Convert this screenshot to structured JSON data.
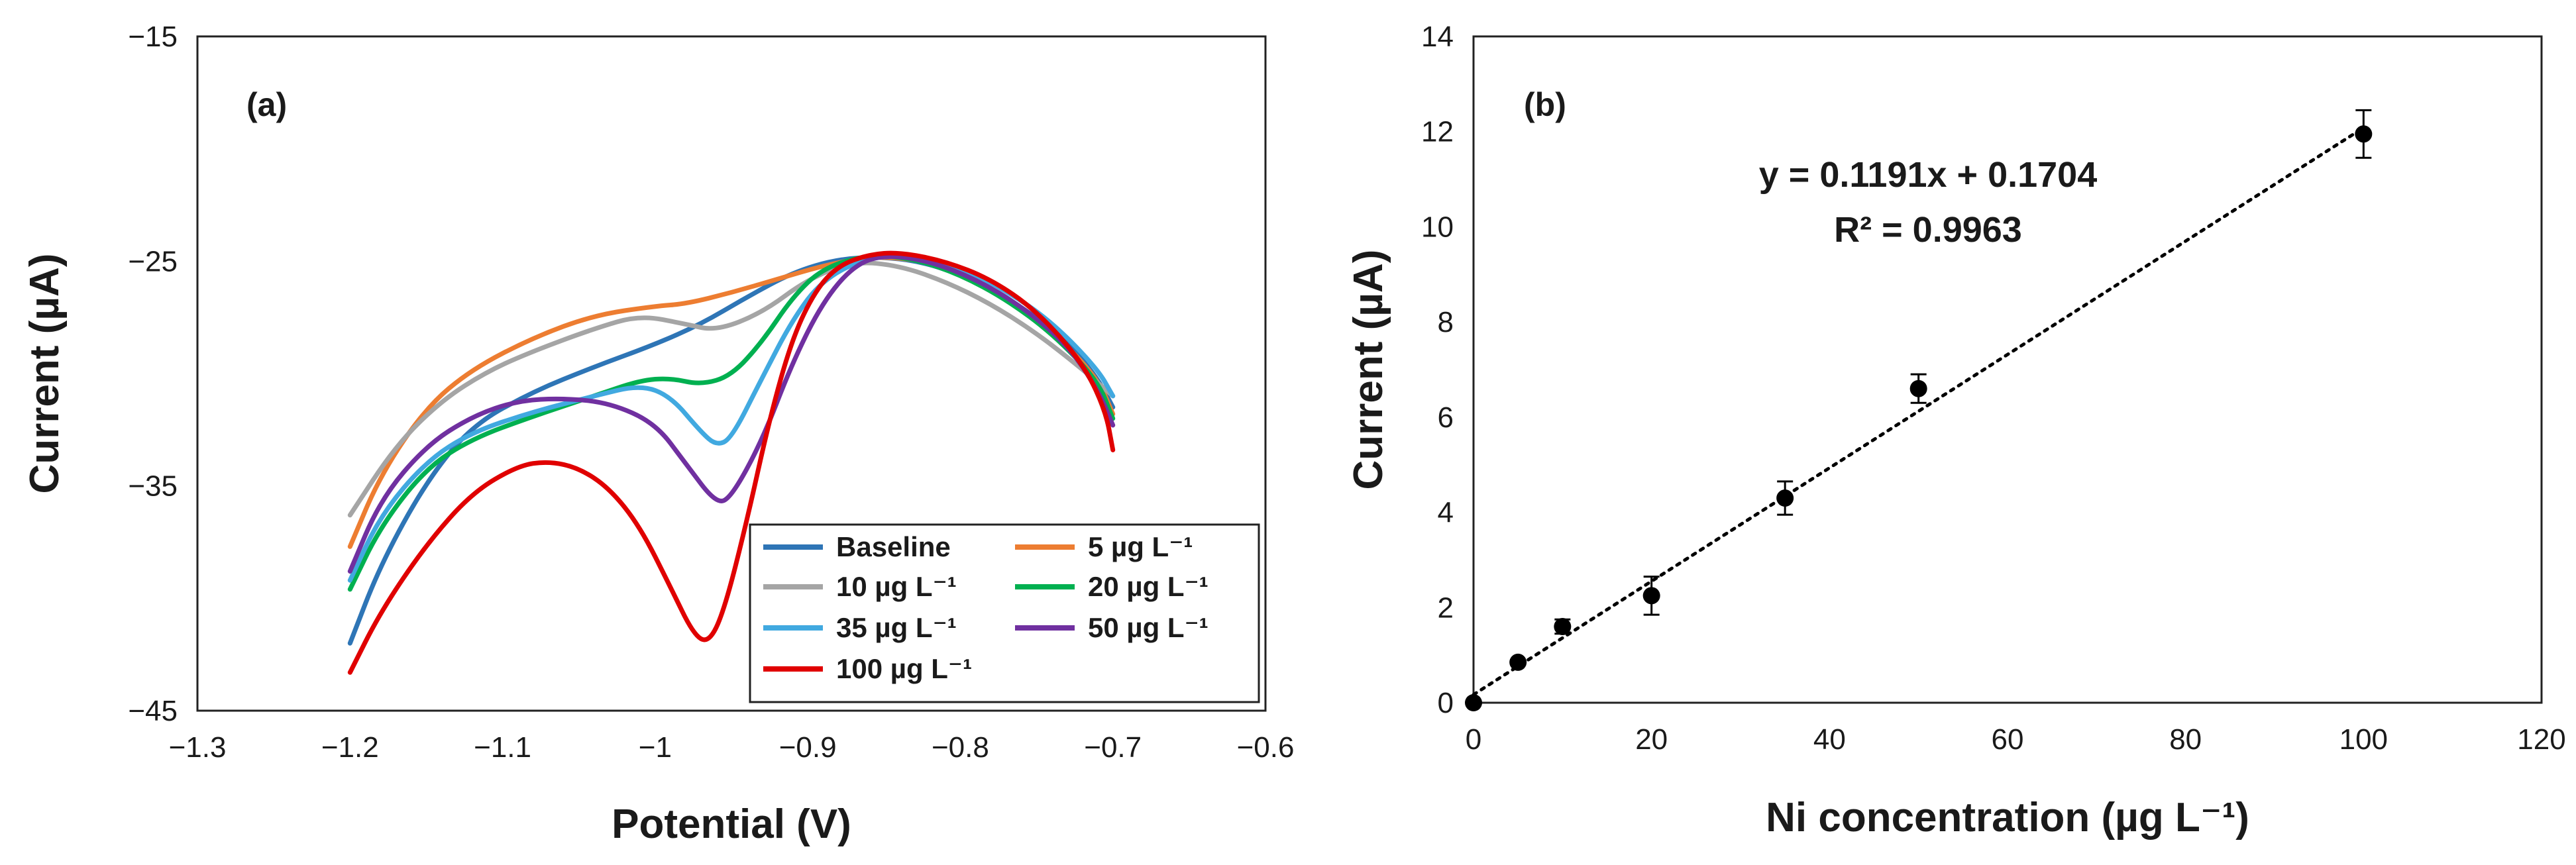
{
  "chart_data": [
    {
      "type": "line",
      "panel_label": "(a)",
      "title": "",
      "xlabel": "Potential (V)",
      "ylabel": "Current (µA)",
      "xlim": [
        -1.3,
        -0.6
      ],
      "ylim": [
        -45,
        -15
      ],
      "xticks": [
        -1.3,
        -1.2,
        -1.1,
        -1.0,
        -0.9,
        -0.8,
        -0.7,
        -0.6
      ],
      "xtick_labels": [
        "−1.3",
        "−1.2",
        "−1.1",
        "−1",
        "−0.9",
        "−0.8",
        "−0.7",
        "−0.6"
      ],
      "yticks": [
        -15,
        -25,
        -35,
        -45
      ],
      "ytick_labels": [
        "−15",
        "−25",
        "−35",
        "−45"
      ],
      "grid": false,
      "legend_position": "bottom-right",
      "series": [
        {
          "name": "Baseline",
          "color": "#2e75b6",
          "points": [
            [
              -1.2,
              -42.0
            ],
            [
              -1.18,
              -38.5
            ],
            [
              -1.15,
              -34.8
            ],
            [
              -1.12,
              -32.3
            ],
            [
              -1.08,
              -30.8
            ],
            [
              -1.04,
              -29.7
            ],
            [
              -1.0,
              -28.7
            ],
            [
              -0.97,
              -27.8
            ],
            [
              -0.94,
              -26.6
            ],
            [
              -0.91,
              -25.5
            ],
            [
              -0.88,
              -24.9
            ],
            [
              -0.85,
              -24.8
            ],
            [
              -0.82,
              -25.1
            ],
            [
              -0.79,
              -25.9
            ],
            [
              -0.76,
              -27.0
            ],
            [
              -0.73,
              -28.6
            ],
            [
              -0.71,
              -30.2
            ],
            [
              -0.7,
              -31.5
            ]
          ]
        },
        {
          "name": "5 µg L⁻¹",
          "color": "#ed7d31",
          "points": [
            [
              -1.2,
              -37.7
            ],
            [
              -1.18,
              -34.5
            ],
            [
              -1.15,
              -31.5
            ],
            [
              -1.12,
              -29.8
            ],
            [
              -1.08,
              -28.4
            ],
            [
              -1.04,
              -27.4
            ],
            [
              -1.0,
              -27.0
            ],
            [
              -0.98,
              -26.9
            ],
            [
              -0.95,
              -26.4
            ],
            [
              -0.92,
              -25.8
            ],
            [
              -0.89,
              -25.2
            ],
            [
              -0.86,
              -24.8
            ],
            [
              -0.83,
              -24.9
            ],
            [
              -0.8,
              -25.5
            ],
            [
              -0.77,
              -26.6
            ],
            [
              -0.74,
              -28.1
            ],
            [
              -0.71,
              -30.2
            ],
            [
              -0.7,
              -31.8
            ]
          ]
        },
        {
          "name": "10 µg L⁻¹",
          "color": "#a5a5a5",
          "points": [
            [
              -1.2,
              -36.3
            ],
            [
              -1.17,
              -33.2
            ],
            [
              -1.14,
              -31.2
            ],
            [
              -1.11,
              -29.9
            ],
            [
              -1.08,
              -29.0
            ],
            [
              -1.04,
              -28.0
            ],
            [
              -1.01,
              -27.4
            ],
            [
              -0.98,
              -27.8
            ],
            [
              -0.96,
              -28.1
            ],
            [
              -0.93,
              -27.3
            ],
            [
              -0.9,
              -25.8
            ],
            [
              -0.87,
              -25.0
            ],
            [
              -0.84,
              -25.2
            ],
            [
              -0.81,
              -25.9
            ],
            [
              -0.78,
              -26.9
            ],
            [
              -0.75,
              -28.2
            ],
            [
              -0.72,
              -29.8
            ],
            [
              -0.7,
              -31.0
            ]
          ]
        },
        {
          "name": "20 µg L⁻¹",
          "color": "#00b050",
          "points": [
            [
              -1.2,
              -39.6
            ],
            [
              -1.18,
              -36.8
            ],
            [
              -1.15,
              -34.2
            ],
            [
              -1.12,
              -32.9
            ],
            [
              -1.08,
              -31.9
            ],
            [
              -1.04,
              -31.0
            ],
            [
              -1.01,
              -30.3
            ],
            [
              -0.99,
              -30.2
            ],
            [
              -0.97,
              -30.5
            ],
            [
              -0.95,
              -30.1
            ],
            [
              -0.93,
              -28.6
            ],
            [
              -0.91,
              -26.6
            ],
            [
              -0.89,
              -25.3
            ],
            [
              -0.86,
              -24.7
            ],
            [
              -0.83,
              -24.9
            ],
            [
              -0.8,
              -25.6
            ],
            [
              -0.77,
              -26.7
            ],
            [
              -0.74,
              -28.2
            ],
            [
              -0.71,
              -30.3
            ],
            [
              -0.7,
              -32.0
            ]
          ]
        },
        {
          "name": "35 µg L⁻¹",
          "color": "#41a9e0",
          "points": [
            [
              -1.2,
              -39.2
            ],
            [
              -1.18,
              -36.3
            ],
            [
              -1.15,
              -33.9
            ],
            [
              -1.12,
              -32.6
            ],
            [
              -1.08,
              -31.7
            ],
            [
              -1.04,
              -31.0
            ],
            [
              -1.01,
              -30.5
            ],
            [
              -0.99,
              -31.0
            ],
            [
              -0.97,
              -32.6
            ],
            [
              -0.96,
              -33.2
            ],
            [
              -0.95,
              -32.9
            ],
            [
              -0.93,
              -30.2
            ],
            [
              -0.91,
              -27.6
            ],
            [
              -0.89,
              -25.8
            ],
            [
              -0.86,
              -24.8
            ],
            [
              -0.83,
              -24.8
            ],
            [
              -0.8,
              -25.3
            ],
            [
              -0.77,
              -26.3
            ],
            [
              -0.74,
              -27.7
            ],
            [
              -0.71,
              -29.8
            ],
            [
              -0.7,
              -31.0
            ]
          ]
        },
        {
          "name": "50 µg L⁻¹",
          "color": "#7030a0",
          "points": [
            [
              -1.2,
              -38.8
            ],
            [
              -1.18,
              -35.6
            ],
            [
              -1.15,
              -33.2
            ],
            [
              -1.12,
              -31.9
            ],
            [
              -1.09,
              -31.2
            ],
            [
              -1.06,
              -31.1
            ],
            [
              -1.03,
              -31.3
            ],
            [
              -1.0,
              -32.2
            ],
            [
              -0.98,
              -34.0
            ],
            [
              -0.96,
              -35.8
            ],
            [
              -0.95,
              -35.5
            ],
            [
              -0.93,
              -33.0
            ],
            [
              -0.91,
              -29.5
            ],
            [
              -0.89,
              -26.8
            ],
            [
              -0.87,
              -25.2
            ],
            [
              -0.85,
              -24.7
            ],
            [
              -0.82,
              -25.0
            ],
            [
              -0.79,
              -25.8
            ],
            [
              -0.76,
              -27.0
            ],
            [
              -0.73,
              -28.7
            ],
            [
              -0.71,
              -30.7
            ],
            [
              -0.7,
              -32.3
            ]
          ]
        },
        {
          "name": "100 µg L⁻¹",
          "color": "#e00000",
          "points": [
            [
              -1.2,
              -43.3
            ],
            [
              -1.18,
              -40.6
            ],
            [
              -1.15,
              -37.6
            ],
            [
              -1.12,
              -35.3
            ],
            [
              -1.09,
              -34.1
            ],
            [
              -1.07,
              -33.9
            ],
            [
              -1.05,
              -34.2
            ],
            [
              -1.03,
              -35.1
            ],
            [
              -1.01,
              -36.8
            ],
            [
              -0.99,
              -39.5
            ],
            [
              -0.975,
              -41.6
            ],
            [
              -0.965,
              -42.0
            ],
            [
              -0.955,
              -40.6
            ],
            [
              -0.94,
              -36.6
            ],
            [
              -0.925,
              -32.0
            ],
            [
              -0.91,
              -28.4
            ],
            [
              -0.895,
              -26.3
            ],
            [
              -0.88,
              -25.2
            ],
            [
              -0.86,
              -24.7
            ],
            [
              -0.84,
              -24.6
            ],
            [
              -0.81,
              -25.0
            ],
            [
              -0.78,
              -25.8
            ],
            [
              -0.75,
              -27.2
            ],
            [
              -0.72,
              -29.5
            ],
            [
              -0.705,
              -31.6
            ],
            [
              -0.7,
              -33.4
            ]
          ]
        }
      ]
    },
    {
      "type": "scatter",
      "panel_label": "(b)",
      "title": "",
      "xlabel": "Ni concentration (µg L⁻¹)",
      "ylabel": "Current (µA)",
      "xlim": [
        0,
        120
      ],
      "ylim": [
        0,
        14
      ],
      "xticks": [
        0,
        20,
        40,
        60,
        80,
        100,
        120
      ],
      "xtick_labels": [
        "0",
        "20",
        "40",
        "60",
        "80",
        "100",
        "120"
      ],
      "yticks": [
        0,
        2,
        4,
        6,
        8,
        10,
        12,
        14
      ],
      "ytick_labels": [
        "0",
        "2",
        "4",
        "6",
        "8",
        "10",
        "12",
        "14"
      ],
      "grid": false,
      "x": [
        0,
        5,
        10,
        20,
        35,
        50,
        100
      ],
      "y": [
        0.0,
        0.85,
        1.6,
        2.25,
        4.3,
        6.6,
        11.95
      ],
      "error": [
        0.0,
        0.05,
        0.15,
        0.4,
        0.35,
        0.3,
        0.5
      ],
      "trendline": {
        "slope": 0.1191,
        "intercept": 0.1704,
        "x_range": [
          0,
          100
        ],
        "style": "dotted"
      },
      "equation_line1": "y = 0.1191x + 0.1704",
      "equation_line2": "R² = 0.9963",
      "marker_color": "#000000"
    }
  ]
}
